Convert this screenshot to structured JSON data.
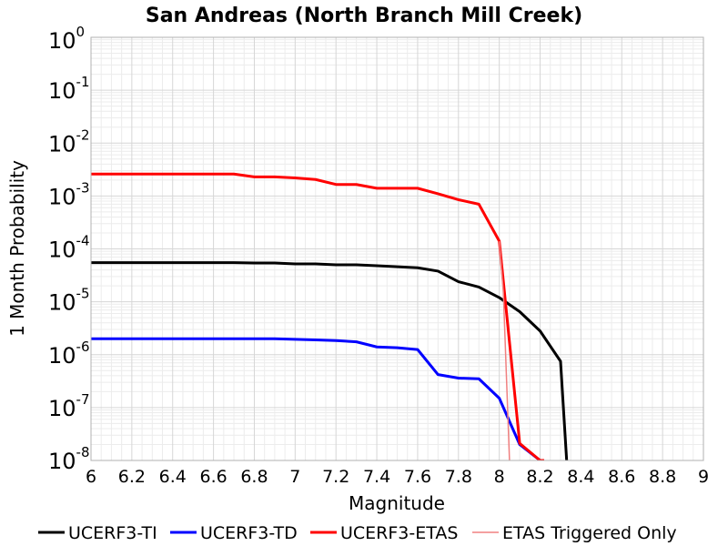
{
  "chart_data": {
    "type": "line",
    "title": "San Andreas (North Branch Mill Creek)",
    "xlabel": "Magnitude",
    "ylabel": "1 Month Probability",
    "xlim": [
      6,
      9
    ],
    "ylim": [
      1e-08,
      1
    ],
    "yscale": "log",
    "grid": true,
    "legend_position": "bottom",
    "x_ticks": [
      "6",
      "6.2",
      "6.4",
      "6.6",
      "6.8",
      "7",
      "7.2",
      "7.4",
      "7.6",
      "7.8",
      "8",
      "8.2",
      "8.4",
      "8.6",
      "8.8",
      "9"
    ],
    "y_ticks": [
      {
        "base": "10",
        "exp": "-8"
      },
      {
        "base": "10",
        "exp": "-7"
      },
      {
        "base": "10",
        "exp": "-6"
      },
      {
        "base": "10",
        "exp": "-5"
      },
      {
        "base": "10",
        "exp": "-4"
      },
      {
        "base": "10",
        "exp": "-3"
      },
      {
        "base": "10",
        "exp": "-2"
      },
      {
        "base": "10",
        "exp": "-1"
      },
      {
        "base": "10",
        "exp": "0"
      }
    ],
    "series": [
      {
        "name": "UCERF3-TI",
        "color": "#000000",
        "width": 3,
        "x": [
          6.0,
          6.1,
          6.2,
          6.3,
          6.4,
          6.5,
          6.6,
          6.7,
          6.8,
          6.9,
          7.0,
          7.1,
          7.2,
          7.3,
          7.4,
          7.5,
          7.6,
          7.7,
          7.8,
          7.9,
          8.0,
          8.1,
          8.2,
          8.3,
          8.33
        ],
        "y": [
          5.5e-05,
          5.5e-05,
          5.5e-05,
          5.5e-05,
          5.5e-05,
          5.5e-05,
          5.5e-05,
          5.5e-05,
          5.4e-05,
          5.4e-05,
          5.2e-05,
          5.2e-05,
          5e-05,
          5e-05,
          4.8e-05,
          4.6e-05,
          4.4e-05,
          3.8e-05,
          2.4e-05,
          1.9e-05,
          1.2e-05,
          6.5e-06,
          2.8e-06,
          7.5e-07,
          1e-08
        ]
      },
      {
        "name": "UCERF3-TD",
        "color": "#0000ff",
        "width": 3,
        "x": [
          6.0,
          6.1,
          6.2,
          6.3,
          6.4,
          6.5,
          6.6,
          6.7,
          6.8,
          6.9,
          7.0,
          7.1,
          7.2,
          7.3,
          7.4,
          7.5,
          7.6,
          7.7,
          7.8,
          7.9,
          8.0,
          8.1,
          8.2
        ],
        "y": [
          2e-06,
          2e-06,
          2e-06,
          2e-06,
          2e-06,
          2e-06,
          2e-06,
          2e-06,
          2e-06,
          2e-06,
          1.95e-06,
          1.9e-06,
          1.85e-06,
          1.75e-06,
          1.4e-06,
          1.35e-06,
          1.25e-06,
          4.2e-07,
          3.6e-07,
          3.5e-07,
          1.5e-07,
          2e-08,
          1e-08
        ]
      },
      {
        "name": "UCERF3-ETAS",
        "color": "#ff0000",
        "width": 3,
        "x": [
          6.0,
          6.1,
          6.2,
          6.3,
          6.4,
          6.5,
          6.6,
          6.7,
          6.8,
          6.9,
          7.0,
          7.1,
          7.2,
          7.3,
          7.4,
          7.5,
          7.6,
          7.7,
          7.8,
          7.9,
          8.0,
          8.1,
          8.2,
          8.22
        ],
        "y": [
          0.0026,
          0.0026,
          0.0026,
          0.0026,
          0.0026,
          0.0026,
          0.0026,
          0.0026,
          0.0023,
          0.0023,
          0.0022,
          0.00205,
          0.00165,
          0.00165,
          0.0014,
          0.0014,
          0.0014,
          0.0011,
          0.00085,
          0.0007,
          0.00014,
          2.1e-08,
          1e-08,
          1e-08
        ]
      },
      {
        "name": "ETAS Triggered Only",
        "color": "#f08080",
        "width": 1.5,
        "x": [
          8.0,
          8.02,
          8.05
        ],
        "y": [
          0.00014,
          1.5e-05,
          1e-08
        ]
      }
    ]
  }
}
